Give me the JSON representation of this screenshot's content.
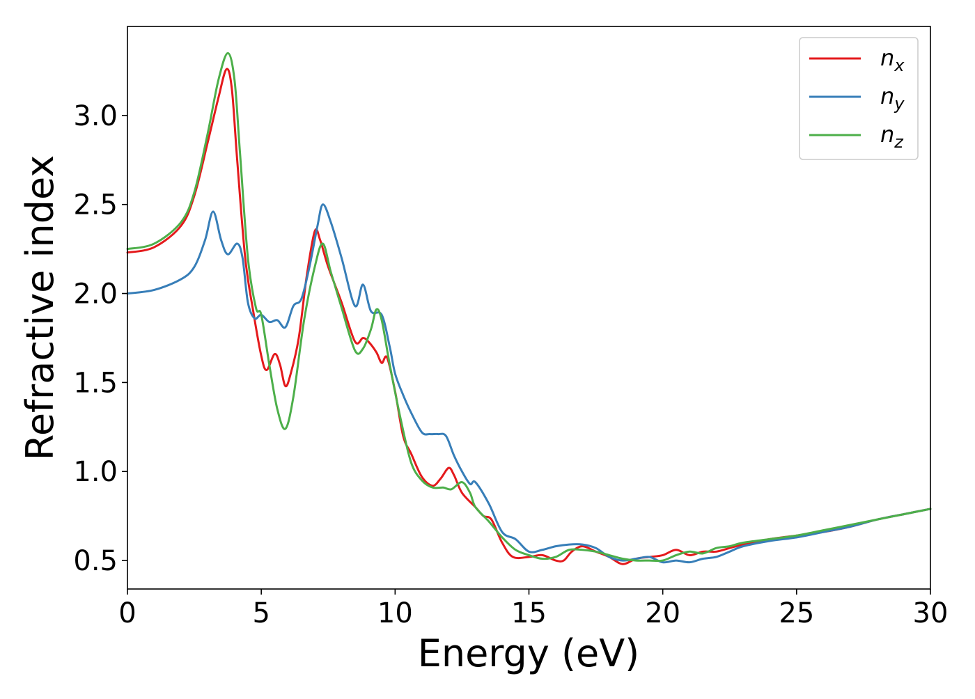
{
  "chart_data": {
    "type": "line",
    "xlabel": "Energy (eV)",
    "ylabel": "Refractive index",
    "xlim": [
      0,
      30
    ],
    "ylim": [
      0.34,
      3.5
    ],
    "x_ticks": [
      0,
      5,
      10,
      15,
      20,
      25,
      30
    ],
    "x_tick_labels": [
      "0",
      "5",
      "10",
      "15",
      "20",
      "25",
      "30"
    ],
    "y_ticks": [
      0.5,
      1.0,
      1.5,
      2.0,
      2.5,
      3.0
    ],
    "y_tick_labels": [
      "0.5",
      "1.0",
      "1.5",
      "2.0",
      "2.5",
      "3.0"
    ],
    "grid": false,
    "legend_position": "top-right",
    "series": [
      {
        "name": "n",
        "subscript": "x",
        "color": "#e41a1c",
        "points": [
          [
            0,
            2.23
          ],
          [
            1,
            2.26
          ],
          [
            2,
            2.38
          ],
          [
            2.5,
            2.55
          ],
          [
            3,
            2.85
          ],
          [
            3.4,
            3.1
          ],
          [
            3.7,
            3.26
          ],
          [
            3.9,
            3.15
          ],
          [
            4.1,
            2.75
          ],
          [
            4.4,
            2.2
          ],
          [
            4.7,
            1.9
          ],
          [
            5.0,
            1.65
          ],
          [
            5.2,
            1.57
          ],
          [
            5.5,
            1.66
          ],
          [
            5.7,
            1.6
          ],
          [
            5.9,
            1.48
          ],
          [
            6.1,
            1.55
          ],
          [
            6.4,
            1.75
          ],
          [
            6.7,
            2.1
          ],
          [
            7.0,
            2.35
          ],
          [
            7.2,
            2.3
          ],
          [
            7.5,
            2.15
          ],
          [
            8.0,
            1.95
          ],
          [
            8.5,
            1.73
          ],
          [
            8.8,
            1.75
          ],
          [
            9.0,
            1.73
          ],
          [
            9.3,
            1.67
          ],
          [
            9.5,
            1.61
          ],
          [
            9.7,
            1.64
          ],
          [
            10.0,
            1.45
          ],
          [
            10.3,
            1.2
          ],
          [
            10.6,
            1.1
          ],
          [
            11.0,
            0.97
          ],
          [
            11.4,
            0.92
          ],
          [
            11.7,
            0.96
          ],
          [
            12.0,
            1.02
          ],
          [
            12.2,
            0.98
          ],
          [
            12.5,
            0.88
          ],
          [
            13.0,
            0.8
          ],
          [
            13.3,
            0.75
          ],
          [
            13.6,
            0.73
          ],
          [
            14.0,
            0.6
          ],
          [
            14.4,
            0.52
          ],
          [
            15.0,
            0.52
          ],
          [
            15.5,
            0.53
          ],
          [
            16.0,
            0.5
          ],
          [
            16.3,
            0.5
          ],
          [
            16.6,
            0.55
          ],
          [
            17.0,
            0.58
          ],
          [
            17.5,
            0.55
          ],
          [
            18.0,
            0.52
          ],
          [
            18.5,
            0.48
          ],
          [
            19.0,
            0.51
          ],
          [
            19.5,
            0.52
          ],
          [
            20.0,
            0.53
          ],
          [
            20.5,
            0.56
          ],
          [
            21.0,
            0.53
          ],
          [
            21.5,
            0.55
          ],
          [
            22.0,
            0.55
          ],
          [
            22.5,
            0.57
          ],
          [
            23.0,
            0.59
          ],
          [
            24.0,
            0.62
          ],
          [
            25.0,
            0.64
          ],
          [
            26.0,
            0.66
          ],
          [
            27.0,
            0.69
          ],
          [
            28.0,
            0.73
          ],
          [
            29.0,
            0.76
          ],
          [
            30.0,
            0.79
          ]
        ]
      },
      {
        "name": "n",
        "subscript": "y",
        "color": "#377eb8",
        "points": [
          [
            0,
            2.0
          ],
          [
            1,
            2.02
          ],
          [
            2,
            2.08
          ],
          [
            2.5,
            2.15
          ],
          [
            2.9,
            2.3
          ],
          [
            3.2,
            2.46
          ],
          [
            3.5,
            2.3
          ],
          [
            3.75,
            2.22
          ],
          [
            4.1,
            2.28
          ],
          [
            4.3,
            2.2
          ],
          [
            4.5,
            1.95
          ],
          [
            4.75,
            1.86
          ],
          [
            5.0,
            1.88
          ],
          [
            5.3,
            1.84
          ],
          [
            5.6,
            1.85
          ],
          [
            5.9,
            1.81
          ],
          [
            6.2,
            1.93
          ],
          [
            6.5,
            1.97
          ],
          [
            6.8,
            2.15
          ],
          [
            7.1,
            2.38
          ],
          [
            7.3,
            2.5
          ],
          [
            7.6,
            2.4
          ],
          [
            8.0,
            2.2
          ],
          [
            8.5,
            1.93
          ],
          [
            8.8,
            2.05
          ],
          [
            9.1,
            1.9
          ],
          [
            9.5,
            1.88
          ],
          [
            9.8,
            1.7
          ],
          [
            10.0,
            1.55
          ],
          [
            10.3,
            1.43
          ],
          [
            10.6,
            1.33
          ],
          [
            11.0,
            1.22
          ],
          [
            11.3,
            1.21
          ],
          [
            11.6,
            1.21
          ],
          [
            11.9,
            1.2
          ],
          [
            12.2,
            1.09
          ],
          [
            12.5,
            1.0
          ],
          [
            12.8,
            0.93
          ],
          [
            13.0,
            0.94
          ],
          [
            13.5,
            0.82
          ],
          [
            14.0,
            0.66
          ],
          [
            14.5,
            0.62
          ],
          [
            15.0,
            0.55
          ],
          [
            15.5,
            0.56
          ],
          [
            16.0,
            0.58
          ],
          [
            16.5,
            0.59
          ],
          [
            17.0,
            0.59
          ],
          [
            17.5,
            0.57
          ],
          [
            18.0,
            0.52
          ],
          [
            18.5,
            0.5
          ],
          [
            19.0,
            0.51
          ],
          [
            19.5,
            0.52
          ],
          [
            20.0,
            0.49
          ],
          [
            20.5,
            0.5
          ],
          [
            21.0,
            0.49
          ],
          [
            21.5,
            0.51
          ],
          [
            22.0,
            0.52
          ],
          [
            22.5,
            0.55
          ],
          [
            23.0,
            0.58
          ],
          [
            24.0,
            0.61
          ],
          [
            25.0,
            0.63
          ],
          [
            26.0,
            0.66
          ],
          [
            27.0,
            0.69
          ],
          [
            28.0,
            0.73
          ],
          [
            29.0,
            0.76
          ],
          [
            30.0,
            0.79
          ]
        ]
      },
      {
        "name": "n",
        "subscript": "z",
        "color": "#4daf4a",
        "points": [
          [
            0,
            2.25
          ],
          [
            1,
            2.28
          ],
          [
            2,
            2.4
          ],
          [
            2.5,
            2.57
          ],
          [
            3,
            2.9
          ],
          [
            3.4,
            3.2
          ],
          [
            3.75,
            3.35
          ],
          [
            4.0,
            3.2
          ],
          [
            4.2,
            2.8
          ],
          [
            4.5,
            2.2
          ],
          [
            4.8,
            1.92
          ],
          [
            5.0,
            1.88
          ],
          [
            5.3,
            1.6
          ],
          [
            5.6,
            1.35
          ],
          [
            5.9,
            1.24
          ],
          [
            6.2,
            1.42
          ],
          [
            6.6,
            1.85
          ],
          [
            7.0,
            2.15
          ],
          [
            7.3,
            2.28
          ],
          [
            7.6,
            2.12
          ],
          [
            8.0,
            1.92
          ],
          [
            8.5,
            1.68
          ],
          [
            8.8,
            1.69
          ],
          [
            9.1,
            1.8
          ],
          [
            9.3,
            1.91
          ],
          [
            9.5,
            1.85
          ],
          [
            9.8,
            1.6
          ],
          [
            10.2,
            1.3
          ],
          [
            10.6,
            1.05
          ],
          [
            11.0,
            0.95
          ],
          [
            11.4,
            0.91
          ],
          [
            11.8,
            0.91
          ],
          [
            12.1,
            0.9
          ],
          [
            12.5,
            0.94
          ],
          [
            12.8,
            0.88
          ],
          [
            13.0,
            0.8
          ],
          [
            13.5,
            0.72
          ],
          [
            14.0,
            0.63
          ],
          [
            14.5,
            0.56
          ],
          [
            15.0,
            0.53
          ],
          [
            15.5,
            0.51
          ],
          [
            16.0,
            0.52
          ],
          [
            16.5,
            0.56
          ],
          [
            17.0,
            0.56
          ],
          [
            17.5,
            0.55
          ],
          [
            18.0,
            0.53
          ],
          [
            18.5,
            0.51
          ],
          [
            19.0,
            0.5
          ],
          [
            19.5,
            0.5
          ],
          [
            20.0,
            0.5
          ],
          [
            20.5,
            0.53
          ],
          [
            21.0,
            0.55
          ],
          [
            21.5,
            0.54
          ],
          [
            22.0,
            0.57
          ],
          [
            22.5,
            0.58
          ],
          [
            23.0,
            0.6
          ],
          [
            24.0,
            0.62
          ],
          [
            25.0,
            0.64
          ],
          [
            26.0,
            0.67
          ],
          [
            27.0,
            0.7
          ],
          [
            28.0,
            0.73
          ],
          [
            29.0,
            0.76
          ],
          [
            30.0,
            0.79
          ]
        ]
      }
    ]
  }
}
